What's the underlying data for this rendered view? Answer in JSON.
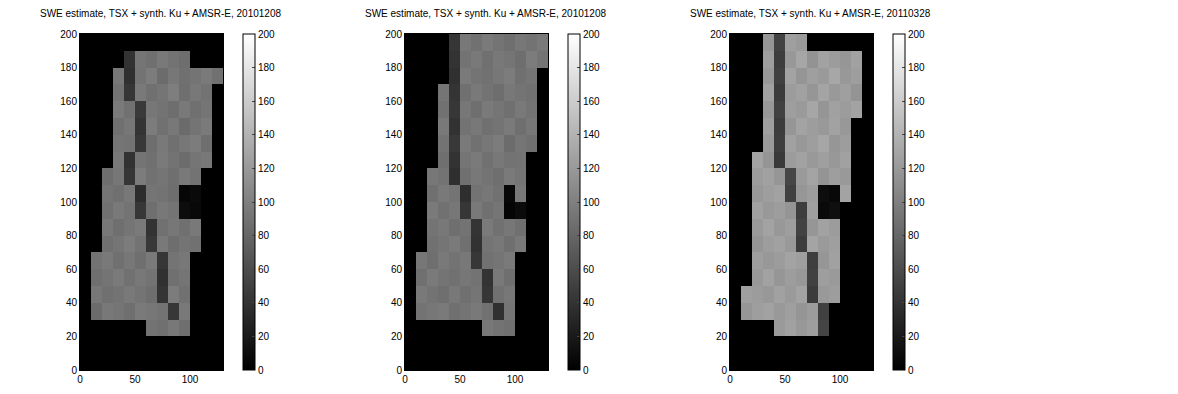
{
  "chart_data": [
    {
      "type": "heatmap",
      "title": "SWE estimate, TSX + synth. Ku + AMSR-E, 20101208",
      "color": "gray",
      "grid": false,
      "x": [
        5,
        15,
        25,
        35,
        45,
        55,
        65,
        75,
        85,
        95,
        105,
        115,
        125
      ],
      "y": [
        195,
        185,
        175,
        165,
        155,
        145,
        135,
        125,
        115,
        105,
        95,
        85,
        75,
        65,
        55,
        45,
        35,
        25,
        15,
        5
      ],
      "z": [
        [
          0,
          0,
          0,
          0,
          0,
          0,
          0,
          0,
          0,
          0,
          0,
          0,
          0
        ],
        [
          0,
          0,
          0,
          0,
          40,
          92,
          88,
          95,
          90,
          86,
          0,
          0,
          0
        ],
        [
          0,
          0,
          0,
          94,
          38,
          90,
          97,
          85,
          93,
          88,
          91,
          96,
          89
        ],
        [
          0,
          0,
          0,
          90,
          42,
          95,
          88,
          92,
          99,
          87,
          94,
          90,
          0
        ],
        [
          0,
          0,
          0,
          96,
          89,
          45,
          93,
          90,
          86,
          95,
          88,
          92,
          0
        ],
        [
          0,
          0,
          0,
          88,
          93,
          41,
          97,
          89,
          94,
          84,
          91,
          96,
          0
        ],
        [
          0,
          0,
          0,
          92,
          90,
          44,
          86,
          95,
          88,
          93,
          97,
          87,
          0
        ],
        [
          0,
          0,
          0,
          95,
          39,
          91,
          88,
          96,
          90,
          85,
          92,
          94,
          0
        ],
        [
          0,
          0,
          86,
          93,
          42,
          97,
          89,
          92,
          87,
          95,
          90,
          0,
          0
        ],
        [
          0,
          0,
          91,
          88,
          94,
          35,
          92,
          90,
          86,
          5,
          8,
          0,
          0
        ],
        [
          0,
          0,
          89,
          95,
          90,
          43,
          87,
          94,
          91,
          10,
          6,
          0,
          0
        ],
        [
          0,
          0,
          94,
          87,
          92,
          96,
          40,
          89,
          93,
          88,
          95,
          0,
          0
        ],
        [
          0,
          0,
          88,
          92,
          97,
          90,
          44,
          95,
          86,
          91,
          89,
          0,
          0
        ],
        [
          0,
          90,
          95,
          88,
          93,
          87,
          96,
          42,
          91,
          94,
          0,
          0,
          0
        ],
        [
          0,
          87,
          91,
          96,
          89,
          94,
          90,
          38,
          88,
          92,
          0,
          0,
          0
        ],
        [
          0,
          93,
          88,
          90,
          95,
          91,
          86,
          41,
          97,
          89,
          0,
          0,
          0
        ],
        [
          0,
          85,
          94,
          92,
          87,
          96,
          93,
          90,
          43,
          95,
          0,
          0,
          0
        ],
        [
          0,
          0,
          0,
          0,
          0,
          0,
          90,
          88,
          94,
          87,
          0,
          0,
          0
        ],
        [
          0,
          0,
          0,
          0,
          0,
          0,
          0,
          0,
          0,
          0,
          0,
          0,
          0
        ],
        [
          0,
          0,
          0,
          0,
          0,
          0,
          0,
          0,
          0,
          0,
          0,
          0,
          0
        ]
      ],
      "xlim": [
        0,
        130
      ],
      "ylim": [
        0,
        200
      ],
      "xticks": [
        0,
        50,
        100
      ],
      "yticks": [
        0,
        20,
        40,
        60,
        80,
        100,
        120,
        140,
        160,
        180,
        200
      ],
      "colorbar": {
        "range": [
          0,
          200
        ],
        "ticks": [
          0,
          20,
          40,
          60,
          80,
          100,
          120,
          140,
          160,
          180,
          200
        ]
      }
    },
    {
      "type": "heatmap",
      "title": "SWE estimate, TSX + synth. Ku + AMSR-E, 20101208",
      "color": "gray",
      "grid": false,
      "x": [
        5,
        15,
        25,
        35,
        45,
        55,
        65,
        75,
        85,
        95,
        105,
        115,
        125
      ],
      "y": [
        195,
        185,
        175,
        165,
        155,
        145,
        135,
        125,
        115,
        105,
        95,
        85,
        75,
        65,
        55,
        45,
        35,
        25,
        15,
        5
      ],
      "z": [
        [
          0,
          0,
          0,
          0,
          42,
          94,
          89,
          96,
          91,
          87,
          93,
          90,
          95
        ],
        [
          0,
          0,
          0,
          0,
          40,
          90,
          95,
          88,
          94,
          92,
          86,
          97,
          91
        ],
        [
          0,
          0,
          0,
          0,
          38,
          96,
          91,
          89,
          93,
          97,
          88,
          92,
          0
        ],
        [
          0,
          0,
          0,
          92,
          41,
          88,
          95,
          90,
          86,
          94,
          91,
          89,
          0
        ],
        [
          0,
          0,
          0,
          89,
          43,
          93,
          87,
          96,
          92,
          88,
          95,
          90,
          0
        ],
        [
          0,
          0,
          0,
          95,
          39,
          90,
          94,
          88,
          91,
          96,
          87,
          93,
          0
        ],
        [
          0,
          0,
          0,
          90,
          44,
          96,
          89,
          93,
          97,
          85,
          92,
          88,
          0
        ],
        [
          0,
          0,
          0,
          87,
          40,
          92,
          96,
          89,
          94,
          90,
          91,
          0,
          0
        ],
        [
          0,
          0,
          93,
          90,
          37,
          88,
          94,
          91,
          87,
          96,
          92,
          0,
          0
        ],
        [
          0,
          0,
          88,
          95,
          91,
          36,
          90,
          93,
          89,
          6,
          94,
          0,
          0
        ],
        [
          0,
          0,
          96,
          89,
          93,
          42,
          95,
          88,
          92,
          4,
          9,
          0,
          0
        ],
        [
          0,
          0,
          91,
          94,
          87,
          90,
          41,
          96,
          89,
          93,
          88,
          0,
          0
        ],
        [
          0,
          0,
          89,
          92,
          96,
          88,
          39,
          91,
          94,
          87,
          95,
          0,
          0
        ],
        [
          0,
          93,
          87,
          95,
          90,
          94,
          43,
          89,
          92,
          96,
          0,
          0,
          0
        ],
        [
          0,
          88,
          96,
          91,
          89,
          93,
          90,
          40,
          95,
          87,
          0,
          0,
          0
        ],
        [
          0,
          95,
          90,
          87,
          94,
          88,
          92,
          42,
          89,
          93,
          0,
          0,
          0
        ],
        [
          0,
          90,
          93,
          96,
          88,
          91,
          95,
          89,
          38,
          92,
          0,
          0,
          0
        ],
        [
          0,
          0,
          0,
          0,
          0,
          0,
          0,
          94,
          90,
          88,
          0,
          0,
          0
        ],
        [
          0,
          0,
          0,
          0,
          0,
          0,
          0,
          0,
          0,
          0,
          0,
          0,
          0
        ],
        [
          0,
          0,
          0,
          0,
          0,
          0,
          0,
          0,
          0,
          0,
          0,
          0,
          0
        ]
      ],
      "xlim": [
        0,
        130
      ],
      "ylim": [
        0,
        200
      ],
      "xticks": [
        0,
        50,
        100
      ],
      "yticks": [
        0,
        20,
        40,
        60,
        80,
        100,
        120,
        140,
        160,
        180,
        200
      ],
      "colorbar": {
        "range": [
          0,
          200
        ],
        "ticks": [
          0,
          20,
          40,
          60,
          80,
          100,
          120,
          140,
          160,
          180,
          200
        ]
      }
    },
    {
      "type": "heatmap",
      "title": "SWE estimate, TSX + synth. Ku + AMSR-E, 20110328",
      "color": "gray",
      "grid": false,
      "x": [
        5,
        15,
        25,
        35,
        45,
        55,
        65,
        75,
        85,
        95,
        105,
        115,
        125
      ],
      "y": [
        195,
        185,
        175,
        165,
        155,
        145,
        135,
        125,
        115,
        105,
        95,
        85,
        75,
        65,
        55,
        45,
        35,
        25,
        15,
        5
      ],
      "z": [
        [
          0,
          0,
          0,
          118,
          52,
          125,
          121,
          0,
          0,
          0,
          0,
          0,
          0
        ],
        [
          0,
          0,
          0,
          124,
          48,
          119,
          130,
          115,
          127,
          122,
          118,
          126,
          0
        ],
        [
          0,
          0,
          0,
          120,
          50,
          128,
          117,
          125,
          121,
          131,
          119,
          124,
          0
        ],
        [
          0,
          0,
          0,
          127,
          46,
          122,
          126,
          118,
          129,
          120,
          125,
          116,
          0
        ],
        [
          0,
          0,
          0,
          119,
          51,
          124,
          121,
          130,
          117,
          126,
          122,
          128,
          0
        ],
        [
          0,
          0,
          0,
          125,
          47,
          118,
          128,
          123,
          120,
          127,
          119,
          0,
          0
        ],
        [
          0,
          0,
          0,
          121,
          49,
          126,
          119,
          124,
          130,
          118,
          123,
          0,
          0
        ],
        [
          0,
          0,
          128,
          117,
          45,
          122,
          127,
          120,
          125,
          119,
          126,
          0,
          0
        ],
        [
          0,
          0,
          122,
          126,
          118,
          55,
          121,
          129,
          116,
          124,
          120,
          0,
          0
        ],
        [
          0,
          0,
          119,
          124,
          127,
          50,
          118,
          123,
          10,
          6,
          128,
          0,
          0
        ],
        [
          0,
          0,
          126,
          120,
          123,
          117,
          48,
          125,
          8,
          12,
          0,
          0,
          0
        ],
        [
          0,
          0,
          121,
          128,
          119,
          124,
          52,
          118,
          127,
          122,
          0,
          0,
          0
        ],
        [
          0,
          0,
          117,
          123,
          126,
          120,
          47,
          129,
          121,
          125,
          0,
          0,
          0
        ],
        [
          0,
          0,
          124,
          119,
          122,
          128,
          125,
          49,
          118,
          126,
          0,
          0,
          0
        ],
        [
          0,
          0,
          120,
          127,
          118,
          123,
          119,
          51,
          124,
          121,
          0,
          0,
          0
        ],
        [
          0,
          125,
          122,
          119,
          126,
          121,
          128,
          46,
          120,
          123,
          0,
          0,
          0
        ],
        [
          0,
          118,
          124,
          127,
          120,
          125,
          117,
          122,
          50,
          0,
          0,
          0,
          0
        ],
        [
          0,
          0,
          0,
          0,
          121,
          126,
          119,
          124,
          53,
          0,
          0,
          0,
          0
        ],
        [
          0,
          0,
          0,
          0,
          0,
          0,
          0,
          0,
          0,
          0,
          0,
          0,
          0
        ],
        [
          0,
          0,
          0,
          0,
          0,
          0,
          0,
          0,
          0,
          0,
          0,
          0,
          0
        ]
      ],
      "xlim": [
        0,
        130
      ],
      "ylim": [
        0,
        200
      ],
      "xticks": [
        0,
        50,
        100
      ],
      "yticks": [
        0,
        20,
        40,
        60,
        80,
        100,
        120,
        140,
        160,
        180,
        200
      ],
      "colorbar": {
        "range": [
          0,
          200
        ],
        "ticks": [
          0,
          20,
          40,
          60,
          80,
          100,
          120,
          140,
          160,
          180,
          200
        ]
      }
    }
  ]
}
